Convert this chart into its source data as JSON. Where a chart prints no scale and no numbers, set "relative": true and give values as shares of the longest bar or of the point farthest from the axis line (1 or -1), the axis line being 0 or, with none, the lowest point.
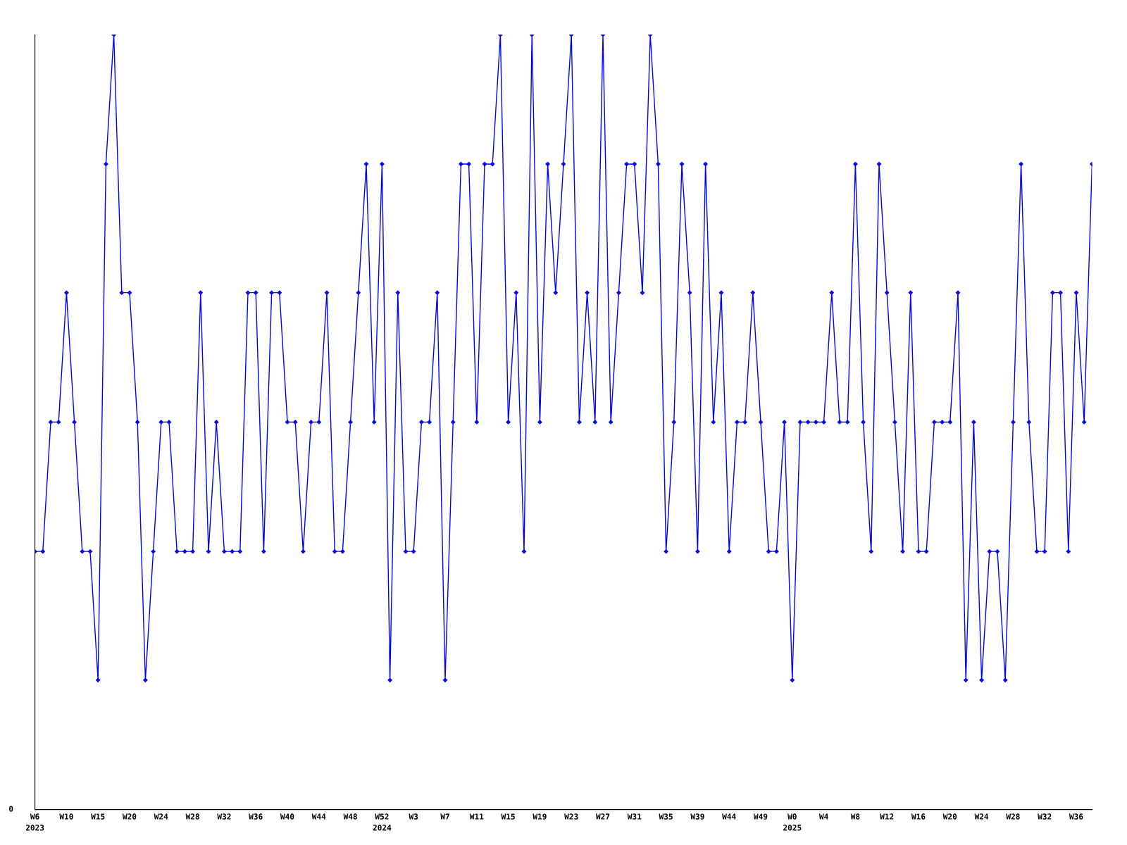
{
  "chart_data": {
    "type": "line",
    "relative": true,
    "color": "#0000ff",
    "marker": "diamond",
    "line_style": "solid",
    "grid": false,
    "legend": false,
    "annotations": [
      "0"
    ],
    "categories": [
      "W6\n2023",
      null,
      null,
      null,
      "W10",
      null,
      null,
      null,
      "W15",
      null,
      null,
      null,
      "W20",
      null,
      null,
      null,
      "W24",
      null,
      null,
      null,
      "W28",
      null,
      null,
      null,
      "W32",
      null,
      null,
      null,
      "W36",
      null,
      null,
      null,
      "W40",
      null,
      null,
      null,
      "W44",
      null,
      null,
      null,
      "W48",
      null,
      null,
      null,
      "W52\n2024",
      null,
      null,
      null,
      "W3",
      null,
      null,
      null,
      "W7",
      null,
      null,
      null,
      "W11",
      null,
      null,
      null,
      "W15",
      null,
      null,
      null,
      "W19",
      null,
      null,
      null,
      "W23",
      null,
      null,
      null,
      "W27",
      null,
      null,
      null,
      "W31",
      null,
      null,
      null,
      "W35",
      null,
      null,
      null,
      "W39",
      null,
      null,
      null,
      "W44",
      null,
      null,
      null,
      "W49",
      null,
      null,
      null,
      "W0\n2025",
      null,
      null,
      null,
      "W4",
      null,
      null,
      null,
      "W8",
      null,
      null,
      null,
      "W12",
      null,
      null,
      null,
      "W16",
      null,
      null,
      null,
      "W20",
      null,
      null,
      null,
      "W24",
      null,
      null,
      null,
      "W28",
      null,
      null,
      null,
      "W32",
      null,
      null,
      null,
      "W36",
      null,
      null
    ],
    "values": [
      0.333,
      0.333,
      0.5,
      0.5,
      0.667,
      0.5,
      0.333,
      0.333,
      0.167,
      0.833,
      1,
      0.667,
      0.667,
      0.5,
      0.167,
      0.333,
      0.5,
      0.5,
      0.333,
      0.333,
      0.333,
      0.667,
      0.333,
      0.5,
      0.333,
      0.333,
      0.333,
      0.667,
      0.667,
      0.333,
      0.667,
      0.667,
      0.5,
      0.5,
      0.333,
      0.5,
      0.5,
      0.667,
      0.333,
      0.333,
      0.5,
      0.667,
      0.833,
      0.5,
      0.833,
      0.167,
      0.667,
      0.333,
      0.333,
      0.5,
      0.5,
      0.667,
      0.167,
      0.5,
      0.833,
      0.833,
      0.5,
      0.833,
      0.833,
      1,
      0.5,
      0.667,
      0.333,
      1,
      0.5,
      0.833,
      0.667,
      0.833,
      1,
      0.5,
      0.667,
      0.5,
      1,
      0.5,
      0.667,
      0.833,
      0.833,
      0.667,
      1,
      0.833,
      0.333,
      0.5,
      0.833,
      0.667,
      0.333,
      0.833,
      0.5,
      0.667,
      0.333,
      0.5,
      0.5,
      0.667,
      0.5,
      0.333,
      0.333,
      0.5,
      0.167,
      0.5,
      0.5,
      0.5,
      0.5,
      0.667,
      0.5,
      0.5,
      0.833,
      0.5,
      0.333,
      0.833,
      0.667,
      0.5,
      0.333,
      0.667,
      0.333,
      0.333,
      0.5,
      0.5,
      0.5,
      0.667,
      0.167,
      0.5,
      0.167,
      0.333,
      0.333,
      0.167,
      0.5,
      0.833,
      0.5,
      0.333,
      0.333,
      0.667,
      0.667,
      0.333,
      0.667,
      0.5,
      0.833
    ]
  }
}
